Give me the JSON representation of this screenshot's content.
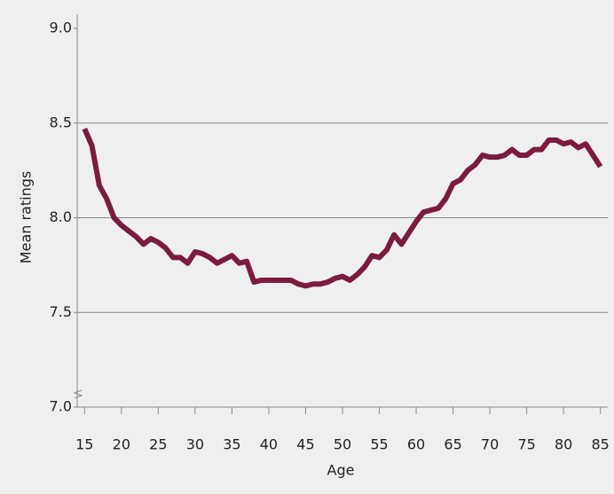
{
  "chart_data": {
    "type": "line",
    "x_label": "Age",
    "y_label": "Mean ratings",
    "x": [
      15,
      16,
      17,
      18,
      19,
      20,
      21,
      22,
      23,
      24,
      25,
      26,
      27,
      28,
      29,
      30,
      31,
      32,
      33,
      34,
      35,
      36,
      37,
      38,
      39,
      40,
      41,
      42,
      43,
      44,
      45,
      46,
      47,
      48,
      49,
      50,
      51,
      52,
      53,
      54,
      55,
      56,
      57,
      58,
      59,
      60,
      61,
      62,
      63,
      64,
      65,
      66,
      67,
      68,
      69,
      70,
      71,
      72,
      73,
      74,
      75,
      76,
      77,
      78,
      79,
      80,
      81,
      82,
      83,
      84,
      85
    ],
    "series": [
      {
        "name": "Mean ratings",
        "color": "#7b1c3e",
        "values": [
          8.47,
          8.38,
          8.17,
          8.1,
          8.0,
          7.96,
          7.93,
          7.9,
          7.86,
          7.89,
          7.87,
          7.84,
          7.79,
          7.79,
          7.76,
          7.82,
          7.81,
          7.79,
          7.76,
          7.78,
          7.8,
          7.76,
          7.77,
          7.66,
          7.67,
          7.67,
          7.67,
          7.67,
          7.67,
          7.65,
          7.64,
          7.65,
          7.65,
          7.66,
          7.68,
          7.69,
          7.67,
          7.7,
          7.74,
          7.8,
          7.79,
          7.83,
          7.91,
          7.86,
          7.92,
          7.98,
          8.03,
          8.04,
          8.05,
          8.1,
          8.18,
          8.2,
          8.25,
          8.28,
          8.33,
          8.32,
          8.32,
          8.33,
          8.36,
          8.33,
          8.33,
          8.36,
          8.36,
          8.41,
          8.41,
          8.39,
          8.4,
          8.37,
          8.39,
          8.33,
          8.27
        ]
      }
    ],
    "xlim": [
      14,
      86
    ],
    "xticks": [
      15,
      20,
      25,
      30,
      35,
      40,
      45,
      50,
      55,
      60,
      65,
      70,
      75,
      80,
      85
    ],
    "ylim": [
      7,
      9
    ],
    "yticks": [
      {
        "value": 7,
        "label": "7.0"
      },
      {
        "value": 7.5,
        "label": "7.5"
      },
      {
        "value": 8,
        "label": "8.0"
      },
      {
        "value": 8.5,
        "label": "8.5"
      },
      {
        "value": 9,
        "label": "9.0"
      }
    ],
    "grid": true
  }
}
